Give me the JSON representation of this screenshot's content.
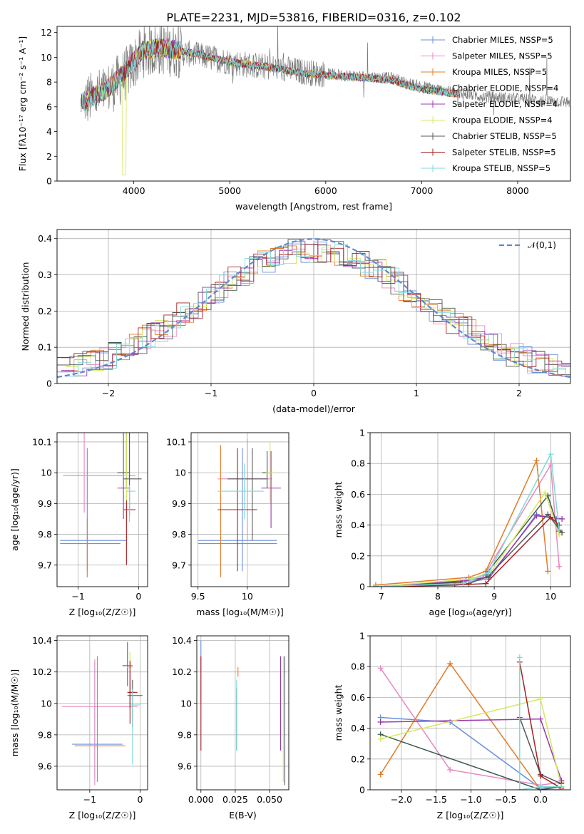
{
  "figure_title": "PLATE=2231, MJD=53816, FIBERID=0316, z=0.102",
  "series_names": [
    "Chabrier MILES",
    "Salpeter MILES",
    "Kroupa MILES",
    "Chabrier ELODIE",
    "Salpeter ELODIE",
    "Kroupa ELODIE",
    "Chabrier STELIB",
    "Salpeter STELIB",
    "Kroupa STELIB"
  ],
  "series_nssp": [
    5,
    5,
    5,
    4,
    4,
    4,
    5,
    5,
    5
  ],
  "series_colors": [
    "#6a8fdb",
    "#e888c0",
    "#e07b28",
    "#405a50",
    "#9a3aae",
    "#d4e860",
    "#585858",
    "#a82020",
    "#80d8d8"
  ],
  "chart_data": [
    {
      "type": "line",
      "title": "PLATE=2231, MJD=53816, FIBERID=0316, z=0.102",
      "xlabel": "wavelength [Angstrom, rest frame]",
      "ylabel": "Flux [fλ10⁻¹⁷ erg cm⁻² s⁻¹ A⁻¹]",
      "xlim": [
        3200,
        8550
      ],
      "ylim": [
        0,
        12.5
      ],
      "xticks": [
        4000,
        5000,
        6000,
        7000,
        8000
      ],
      "yticks": [
        0,
        2,
        4,
        6,
        8,
        10,
        12
      ],
      "legend": "upper right",
      "legend_labels": [
        "Chabrier MILES, NSSP=5",
        "Salpeter MILES, NSSP=5",
        "Kroupa MILES, NSSP=5",
        "Chabrier ELODIE, NSSP=4",
        "Salpeter ELODIE, NSSP=4",
        "Kroupa ELODIE, NSSP=4",
        "Chabrier STELIB, NSSP=5",
        "Salpeter STELIB, NSSP=5",
        "Kroupa STELIB, NSSP=5"
      ],
      "data_x": [
        3500,
        3700,
        3900,
        4100,
        4300,
        4500,
        4700,
        4900,
        5100,
        5300,
        5500,
        5700,
        5900,
        6100,
        6300,
        6500,
        6700,
        6900,
        7100,
        7300,
        7500,
        7700,
        7900,
        8100,
        8300,
        8500
      ],
      "data_y": [
        6.5,
        7.2,
        8.5,
        10.5,
        10.7,
        10.4,
        10.1,
        9.8,
        9.5,
        9.3,
        9.1,
        8.9,
        8.7,
        8.6,
        8.5,
        8.4,
        8.3,
        7.8,
        7.5,
        7.2,
        7.0,
        6.8,
        6.7,
        6.6,
        6.5,
        6.4
      ],
      "model_x": [
        3450,
        3700,
        3900,
        4100,
        4300,
        4500,
        4700,
        4900,
        5100,
        5300,
        5500,
        5700,
        5900,
        6100,
        6300,
        6500,
        6700,
        6900,
        7100,
        7300,
        7400
      ],
      "model_y": [
        6.3,
        7.3,
        8.8,
        10.6,
        10.8,
        10.5,
        10.2,
        9.8,
        9.5,
        9.3,
        9.1,
        8.8,
        8.6,
        8.5,
        8.4,
        8.3,
        8.1,
        7.6,
        7.3,
        7.1,
        7.0
      ]
    },
    {
      "type": "bar",
      "xlabel": "(data-model)/error",
      "ylabel": "Normed distribution",
      "xlim": [
        -2.5,
        2.5
      ],
      "ylim": [
        0,
        0.425
      ],
      "xticks": [
        -2,
        -1,
        0,
        1,
        2
      ],
      "yticks": [
        0.0,
        0.1,
        0.2,
        0.3,
        0.4
      ],
      "legend": "upper right",
      "gauss_label": "𝒩(0,1)",
      "bin_width": 0.125
    },
    {
      "type": "scatter",
      "xlabel": "Z [log₁₀(Z/Z☉)]",
      "ylabel": "age [log₁₀(age/yr)]",
      "xlim": [
        -1.35,
        0.15
      ],
      "ylim": [
        9.63,
        10.13
      ],
      "xticks": [
        -1,
        0
      ],
      "yticks": [
        9.7,
        9.8,
        9.9,
        10.0,
        10.1
      ],
      "points": [
        {
          "x": -0.85,
          "y": 9.78,
          "xerr": [
            0.45,
            0.65
          ],
          "yerr": [
            0.1,
            0.3
          ]
        },
        {
          "x": -0.9,
          "y": 9.99,
          "xerr": [
            0.35,
            0.85
          ],
          "yerr": [
            0.12,
            0.33
          ]
        },
        {
          "x": -0.85,
          "y": 9.77,
          "xerr": [
            0.45,
            0.55
          ],
          "yerr": [
            0.11,
            0.08
          ]
        },
        {
          "x": -0.2,
          "y": 10.0,
          "xerr": [
            0.15,
            0.05
          ],
          "yerr": [
            0.05,
            0.25
          ]
        },
        {
          "x": -0.25,
          "y": 9.95,
          "xerr": [
            0.1,
            0.1
          ],
          "yerr": [
            0.1,
            0.2
          ]
        },
        {
          "x": -0.2,
          "y": 9.99,
          "xerr": [
            0.05,
            0.05
          ],
          "yerr": [
            0.08,
            0.24
          ]
        },
        {
          "x": -0.15,
          "y": 9.98,
          "xerr": [
            0.1,
            0.2
          ],
          "yerr": [
            0.12,
            0.2
          ]
        },
        {
          "x": -0.2,
          "y": 9.88,
          "xerr": [
            0.05,
            0.15
          ],
          "yerr": [
            0.18,
            0.03
          ]
        },
        {
          "x": -0.15,
          "y": 9.94,
          "xerr": [
            0.05,
            0.1
          ],
          "yerr": [
            0.1,
            0.02
          ]
        }
      ]
    },
    {
      "type": "scatter",
      "xlabel": "mass [log₁₀(M/M☉)]",
      "ylabel": "",
      "xlim": [
        9.43,
        10.42
      ],
      "ylim": [
        9.63,
        10.13
      ],
      "xticks": [
        9.5,
        10.0
      ],
      "yticks": [
        9.7,
        9.8,
        9.9,
        10.0,
        10.1
      ],
      "points": [
        {
          "x": 9.95,
          "y": 9.78,
          "xerr": [
            0.45,
            0.35
          ],
          "yerr": [
            0.1,
            0.3
          ]
        },
        {
          "x": 10.0,
          "y": 9.98,
          "xerr": [
            0.3,
            0.25
          ],
          "yerr": [
            0.2,
            0.13
          ]
        },
        {
          "x": 9.73,
          "y": 9.77,
          "xerr": [
            0.23,
            0.57
          ],
          "yerr": [
            0.11,
            0.32
          ]
        },
        {
          "x": 10.2,
          "y": 10.0,
          "xerr": [
            0.05,
            0.05
          ],
          "yerr": [
            0.05,
            0.07
          ]
        },
        {
          "x": 10.24,
          "y": 9.95,
          "xerr": [
            0.1,
            0.1
          ],
          "yerr": [
            0.13,
            0.12
          ]
        },
        {
          "x": 10.23,
          "y": 10.0,
          "xerr": [
            0.04,
            0.04
          ],
          "yerr": [
            0.1,
            0.1
          ]
        },
        {
          "x": 10.05,
          "y": 9.98,
          "xerr": [
            0.25,
            0.15
          ],
          "yerr": [
            0.2,
            0.1
          ]
        },
        {
          "x": 9.9,
          "y": 9.88,
          "xerr": [
            0.2,
            0.2
          ],
          "yerr": [
            0.2,
            0.2
          ]
        },
        {
          "x": 9.97,
          "y": 9.94,
          "xerr": [
            0.27,
            0.2
          ],
          "yerr": [
            0.09,
            0.09
          ]
        }
      ]
    },
    {
      "type": "line",
      "xlabel": "age  [log₁₀(age/yr)]",
      "ylabel": "mass weight",
      "xlim": [
        6.8,
        10.35
      ],
      "ylim": [
        0,
        1.0
      ],
      "xticks": [
        7,
        8,
        9,
        10
      ],
      "yticks": [
        0.0,
        0.2,
        0.4,
        0.6,
        0.8,
        1.0
      ],
      "series": [
        {
          "x": [
            6.9,
            8.5,
            8.9,
            9.75,
            10.1
          ],
          "y": [
            0.0,
            0.03,
            0.05,
            0.47,
            0.44
          ]
        },
        {
          "x": [
            6.9,
            8.3,
            8.8,
            10.0,
            10.15
          ],
          "y": [
            0.0,
            0.02,
            0.06,
            0.79,
            0.13
          ]
        },
        {
          "x": [
            6.9,
            8.55,
            8.85,
            9.75,
            9.95
          ],
          "y": [
            0.01,
            0.06,
            0.1,
            0.82,
            0.1
          ]
        },
        {
          "x": [
            6.9,
            8.4,
            8.85,
            9.95,
            10.15
          ],
          "y": [
            0.0,
            0.03,
            0.08,
            0.59,
            0.36
          ]
        },
        {
          "x": [
            6.9,
            8.5,
            8.9,
            9.75,
            10.2
          ],
          "y": [
            0.0,
            0.04,
            0.06,
            0.46,
            0.44
          ]
        },
        {
          "x": [
            6.9,
            8.6,
            8.95,
            9.9,
            10.15
          ],
          "y": [
            0.0,
            0.05,
            0.1,
            0.61,
            0.34
          ]
        },
        {
          "x": [
            6.9,
            8.55,
            8.9,
            9.95,
            10.2
          ],
          "y": [
            0.0,
            0.02,
            0.07,
            0.47,
            0.35
          ]
        },
        {
          "x": [
            6.9,
            8.3,
            8.85,
            10.0,
            10.15
          ],
          "y": [
            0.0,
            0.01,
            0.02,
            0.45,
            0.4
          ]
        },
        {
          "x": [
            6.9,
            8.45,
            8.9,
            10.0,
            10.15
          ],
          "y": [
            0.0,
            0.02,
            0.09,
            0.86,
            0.37
          ]
        }
      ]
    },
    {
      "type": "scatter",
      "xlabel": "Z [log₁₀(Z/Z☉)]",
      "ylabel": "mass [log₁₀(M/M☉)]",
      "xlim": [
        -1.65,
        0.15
      ],
      "ylim": [
        9.45,
        10.43
      ],
      "xticks": [
        -1,
        0
      ],
      "yticks": [
        9.6,
        9.8,
        10.0,
        10.2,
        10.4
      ],
      "points": [
        {
          "x": -0.9,
          "y": 9.74,
          "xerr": [
            0.45,
            0.55
          ],
          "yerr": [
            0.22,
            0.52
          ]
        },
        {
          "x": -0.9,
          "y": 9.98,
          "xerr": [
            0.65,
            0.85
          ],
          "yerr": [
            0.5,
            0.3
          ]
        },
        {
          "x": -0.85,
          "y": 9.73,
          "xerr": [
            0.45,
            0.55
          ],
          "yerr": [
            0.23,
            0.57
          ]
        },
        {
          "x": -0.2,
          "y": 10.07,
          "xerr": [
            0.05,
            0.1
          ],
          "yerr": [
            0.1,
            0.2
          ]
        },
        {
          "x": -0.25,
          "y": 10.24,
          "xerr": [
            0.1,
            0.1
          ],
          "yerr": [
            0.13,
            0.15
          ]
        },
        {
          "x": -0.2,
          "y": 10.23,
          "xerr": [
            0.06,
            0.06
          ],
          "yerr": [
            0.1,
            0.1
          ]
        },
        {
          "x": -0.15,
          "y": 10.05,
          "xerr": [
            0.1,
            0.2
          ],
          "yerr": [
            0.2,
            0.1
          ]
        },
        {
          "x": -0.2,
          "y": 10.07,
          "xerr": [
            0.05,
            0.15
          ],
          "yerr": [
            0.2,
            0.2
          ]
        },
        {
          "x": -0.15,
          "y": 9.99,
          "xerr": [
            0.05,
            0.15
          ],
          "yerr": [
            0.38,
            0.1
          ]
        }
      ]
    },
    {
      "type": "scatter",
      "xlabel": "E(B-V)",
      "ylabel": "",
      "xlim": [
        -0.003,
        0.064
      ],
      "ylim": [
        9.45,
        10.43
      ],
      "xticks": [
        0.0,
        0.025,
        0.05
      ],
      "ytick_values": [
        9.6,
        9.8,
        10.0,
        10.2,
        10.4
      ],
      "xtick_labels": [
        "0.000",
        "0.025",
        "0.050"
      ],
      "points": [
        {
          "x": 0.0,
          "y": 10.3,
          "yerr": [
            0.1,
            0.1
          ]
        },
        {
          "x": 0.0,
          "y": 10.2,
          "yerr": [
            0.2,
            0.1
          ]
        },
        {
          "x": 0.027,
          "y": 10.2,
          "yerr": [
            0.03,
            0.03
          ]
        },
        {
          "x": 0.026,
          "y": 9.9,
          "yerr": [
            0.2,
            0.2
          ]
        },
        {
          "x": 0.058,
          "y": 10.0,
          "yerr": [
            0.3,
            0.3
          ]
        },
        {
          "x": 0.06,
          "y": 9.9,
          "yerr": [
            0.4,
            0.4
          ]
        },
        {
          "x": 0.061,
          "y": 9.75,
          "yerr": [
            0.27,
            0.55
          ]
        },
        {
          "x": 0.0,
          "y": 10.0,
          "yerr": [
            0.3,
            0.3
          ]
        },
        {
          "x": 0.026,
          "y": 9.95,
          "yerr": [
            0.25,
            0.2
          ]
        }
      ]
    },
    {
      "type": "line",
      "xlabel": "Z [log₁₀(Z/Z☉)]",
      "ylabel": "mass weight",
      "xlim": [
        -2.45,
        0.43
      ],
      "ylim": [
        0,
        1.0
      ],
      "xticks": [
        -2.0,
        -1.5,
        -1.0,
        -0.5,
        0.0
      ],
      "xtick_labels": [
        "−2.0",
        "−1.5",
        "−1.0",
        "−0.5",
        "0.0"
      ],
      "yticks": [
        0.0,
        0.2,
        0.4,
        0.6,
        0.8,
        1.0
      ],
      "series": [
        {
          "x": [
            -2.3,
            -1.3,
            0.0,
            0.3
          ],
          "y": [
            0.47,
            0.44,
            0.01,
            0.02
          ]
        },
        {
          "x": [
            -2.3,
            -1.3,
            0.0,
            0.3
          ],
          "y": [
            0.79,
            0.13,
            0.03,
            0.05
          ]
        },
        {
          "x": [
            -2.3,
            -1.3,
            0.0,
            0.3
          ],
          "y": [
            0.1,
            0.82,
            0.0,
            0.0
          ]
        },
        {
          "x": [
            -2.3,
            0.0,
            0.3
          ],
          "y": [
            0.36,
            0.0,
            0.02
          ]
        },
        {
          "x": [
            -2.3,
            0.0,
            0.3
          ],
          "y": [
            0.44,
            0.46,
            0.06
          ]
        },
        {
          "x": [
            -2.3,
            0.0,
            0.3
          ],
          "y": [
            0.33,
            0.59,
            0.02
          ]
        },
        {
          "x": [
            -0.3,
            0.0,
            0.3
          ],
          "y": [
            0.47,
            0.1,
            0.04
          ]
        },
        {
          "x": [
            -0.3,
            0.0,
            0.3
          ],
          "y": [
            0.83,
            0.09,
            0.01
          ]
        },
        {
          "x": [
            -0.3,
            -0.3,
            0.0,
            0.3
          ],
          "y": [
            0.86,
            0.0,
            0.02,
            0.02
          ]
        }
      ]
    }
  ]
}
